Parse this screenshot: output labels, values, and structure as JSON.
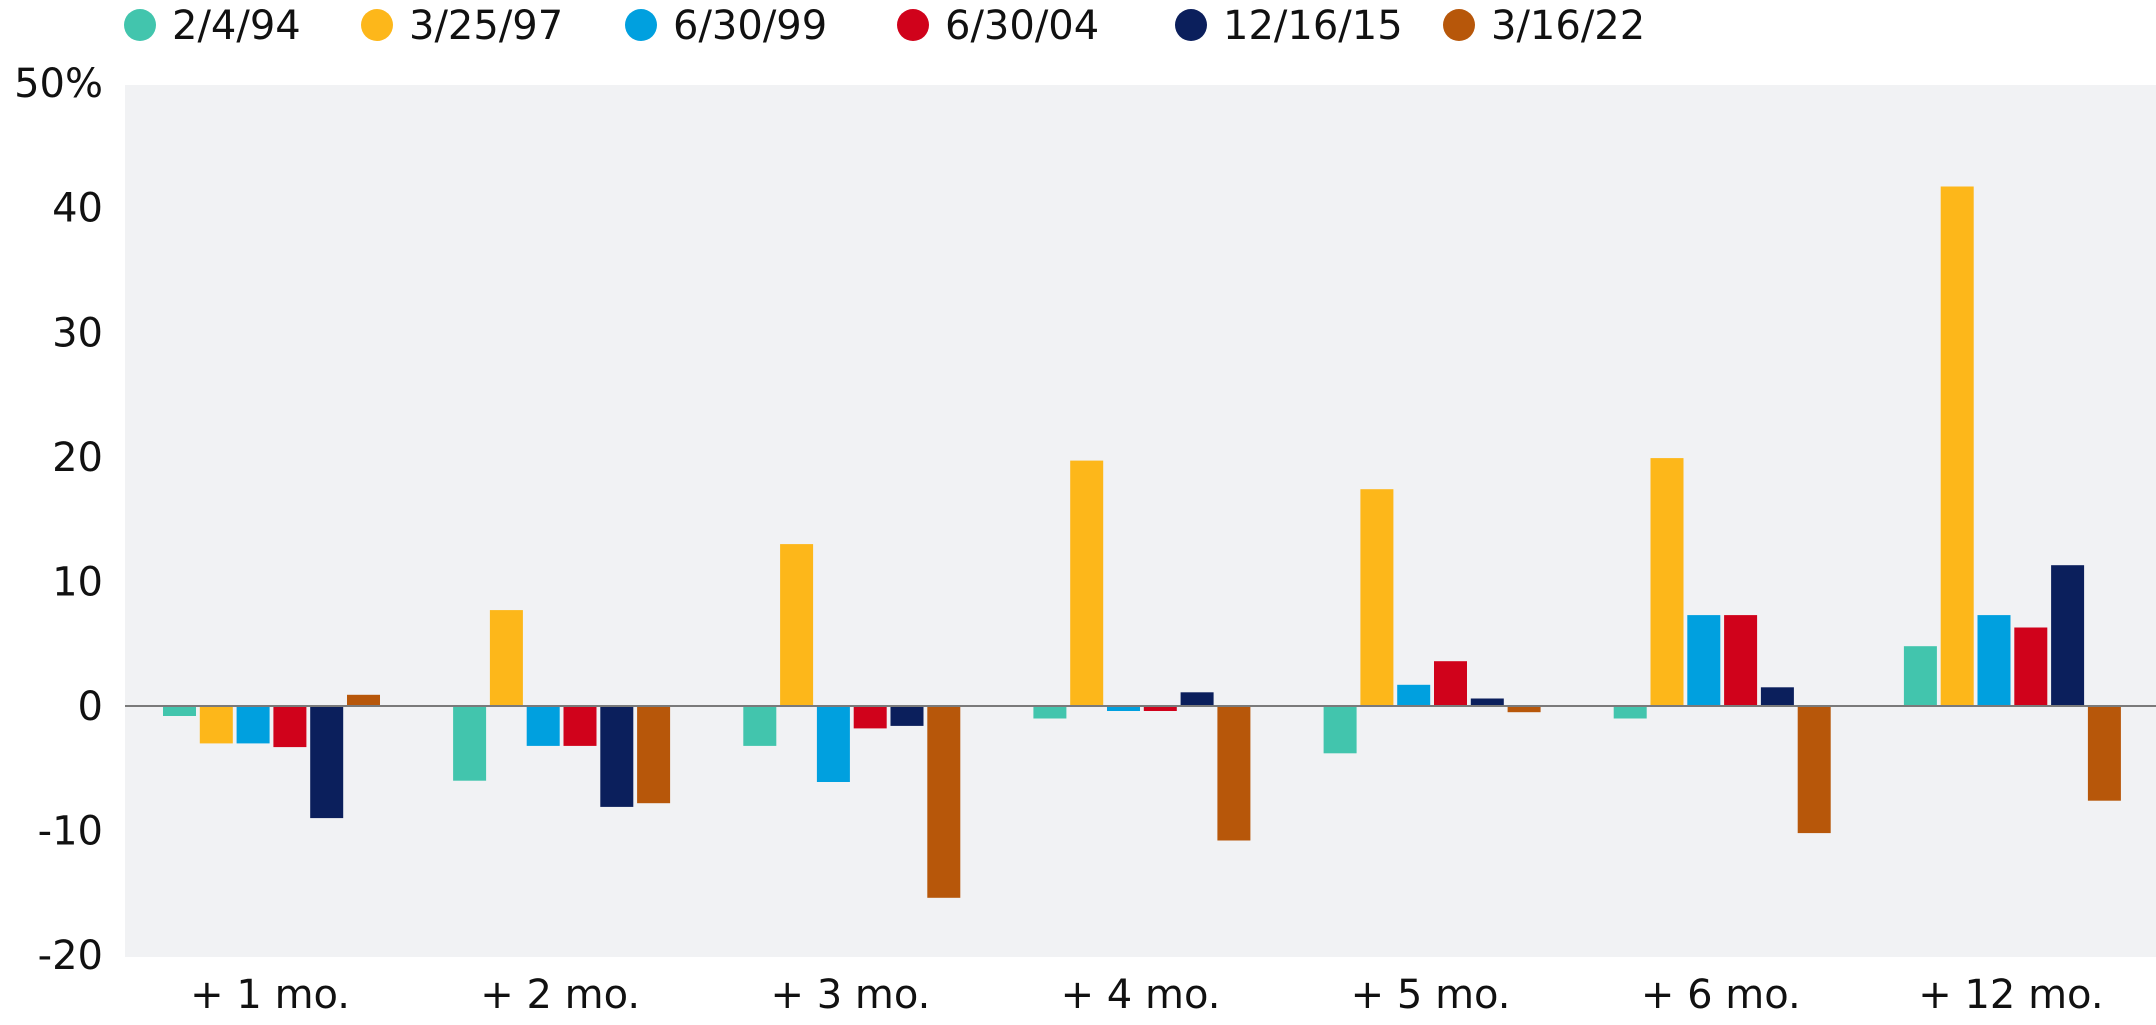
{
  "chart_data": {
    "type": "bar",
    "categories": [
      "+ 1 mo.",
      "+ 2 mo.",
      "+ 3 mo.",
      "+ 4 mo.",
      "+ 5 mo.",
      "+ 6 mo.",
      "+ 12 mo."
    ],
    "ylim": [
      -20,
      50
    ],
    "yticks": [
      -20,
      -10,
      0,
      10,
      20,
      30,
      40,
      50
    ],
    "ytick_labels": [
      "-20",
      "-10",
      "0",
      "10",
      "20",
      "30",
      "40",
      "50%"
    ],
    "legend_position": "top",
    "grid": false,
    "plot_background": "#f1f2f4",
    "series": [
      {
        "name": "2/4/94",
        "color": "#42c5ad",
        "values": [
          -0.8,
          -6.0,
          -3.2,
          -1.0,
          -3.8,
          -1.0,
          4.8
        ]
      },
      {
        "name": "3/25/97",
        "color": "#fdb71a",
        "values": [
          -3.0,
          7.7,
          13.0,
          19.7,
          17.4,
          19.9,
          41.7
        ]
      },
      {
        "name": "6/30/99",
        "color": "#00a0df",
        "values": [
          -3.0,
          -3.2,
          -6.1,
          -0.4,
          1.7,
          7.3,
          7.3
        ]
      },
      {
        "name": "6/30/04",
        "color": "#d0021b",
        "values": [
          -3.3,
          -3.2,
          -1.8,
          -0.4,
          3.6,
          7.3,
          6.3
        ]
      },
      {
        "name": "12/16/15",
        "color": "#0b1f5c",
        "values": [
          -9.0,
          -8.1,
          -1.6,
          1.1,
          0.6,
          1.5,
          11.3
        ]
      },
      {
        "name": "3/16/22",
        "color": "#b7570a",
        "values": [
          0.9,
          -7.8,
          -15.4,
          -10.8,
          -0.5,
          -10.2,
          -7.6
        ]
      }
    ]
  }
}
